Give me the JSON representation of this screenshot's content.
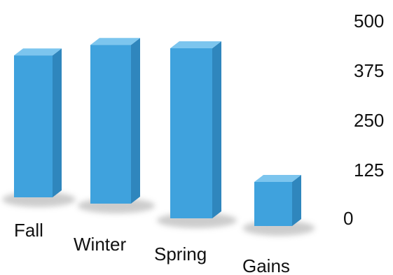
{
  "chart_data": {
    "type": "bar",
    "title": "",
    "xlabel": "",
    "ylabel": "",
    "categories": [
      "Fall",
      "Winter",
      "Spring",
      "Gains"
    ],
    "values": [
      338,
      378,
      405,
      105
    ],
    "ylim": [
      0,
      500
    ],
    "yticks": [
      "500",
      "375",
      "250",
      "125",
      "0"
    ],
    "grid": false,
    "legend": "none",
    "colors": {
      "bar_front": "#3fa2dd",
      "bar_top": "#7cc5ee",
      "bar_side": "#2f86bd",
      "shadow": "#c7c7c7",
      "text": "#111111"
    }
  }
}
